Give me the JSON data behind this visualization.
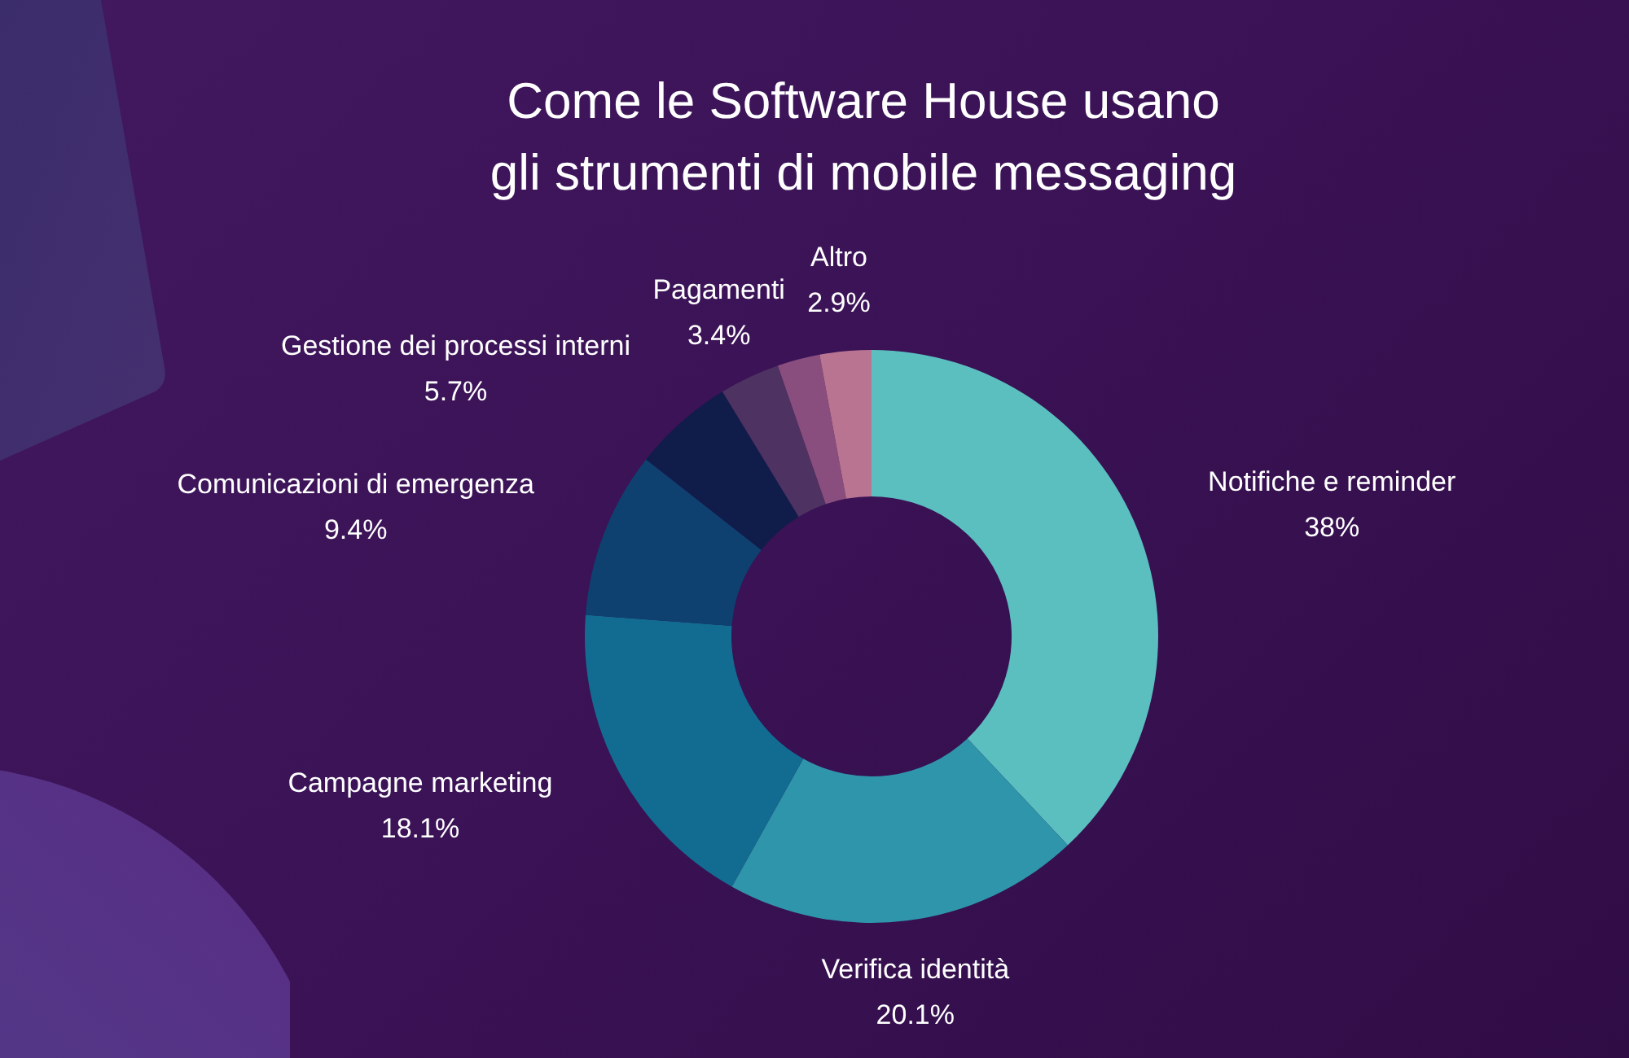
{
  "chart_data": {
    "type": "donut",
    "title": "Come le Software House usano\ngli strumenti di mobile messaging",
    "categories": [
      "Notifiche e reminder",
      "Verifica identità",
      "Campagne marketing",
      "Comunicazioni di emergenza",
      "Gestione dei processi interni",
      "Pagamenti",
      null,
      "Altro"
    ],
    "values": [
      38,
      20.1,
      18.1,
      9.4,
      5.7,
      3.4,
      2.4,
      2.9
    ],
    "value_labels": [
      "38%",
      "20.1%",
      "18.1%",
      "9.4%",
      "5.7%",
      "3.4%",
      null,
      "2.9%"
    ],
    "colors": [
      "#5bbfc0",
      "#2f95ab",
      "#126c91",
      "#0e4170",
      "#101c4a",
      "#4d3262",
      "#8a4e7e",
      "#b87490"
    ]
  }
}
